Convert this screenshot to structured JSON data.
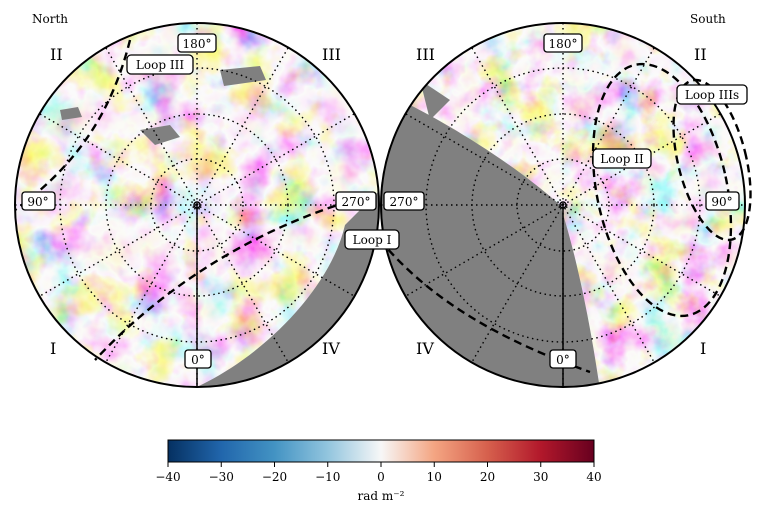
{
  "chart_data": {
    "type": "heatmap",
    "projection": "orthographic polar, two hemispheres",
    "hemispheres": [
      {
        "name": "North",
        "quadrants": [
          "I",
          "II",
          "III",
          "IV"
        ],
        "longitude_labels": [
          "0°",
          "90°",
          "180°",
          "270°"
        ]
      },
      {
        "name": "South",
        "quadrants": [
          "I",
          "II",
          "III",
          "IV"
        ],
        "longitude_labels": [
          "0°",
          "90°",
          "180°",
          "270°"
        ]
      }
    ],
    "loops": [
      "Loop I",
      "Loop II",
      "Loop III",
      "Loop IIIs"
    ],
    "colorbar": {
      "label": "rad m⁻²",
      "range": [
        -40,
        40
      ],
      "ticks": [
        "−40",
        "−30",
        "−20",
        "−10",
        "0",
        "10",
        "20",
        "30",
        "40"
      ],
      "colormap": [
        "#053061",
        "#2166ac",
        "#4393c3",
        "#92c5de",
        "#f7f7f7",
        "#f4a582",
        "#d6604d",
        "#b2182b",
        "#67001f"
      ]
    },
    "masked_color": "#808080"
  }
}
